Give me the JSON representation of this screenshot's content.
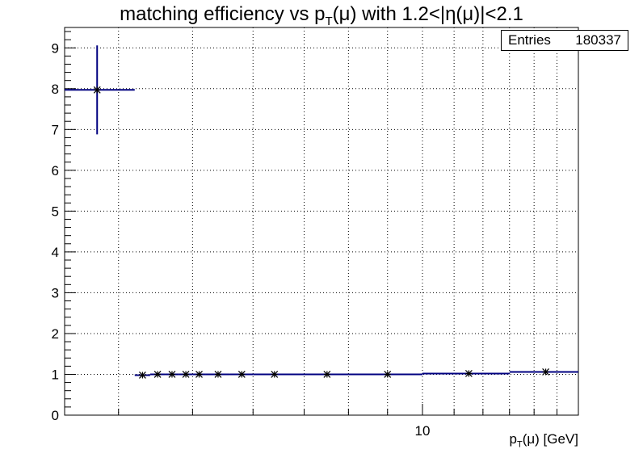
{
  "chart_data": {
    "type": "scatter",
    "title_parts": {
      "pre": "matching efficiency vs p",
      "sub": "T",
      "post": "(μ) with 1.2<|η(μ)|<2.1"
    },
    "stats": {
      "label": "Entries",
      "value": "180337"
    },
    "xlabel_parts": {
      "pre": "p",
      "sub": "T",
      "post": "(μ) [GeV]"
    },
    "ylabel": "",
    "x_scale": "log",
    "xlim": [
      3.4,
      16
    ],
    "ylim": [
      0,
      9.5
    ],
    "yticks": [
      0,
      1,
      2,
      3,
      4,
      5,
      6,
      7,
      8,
      9
    ],
    "xtick_labels": [
      {
        "value": 10,
        "label": "10"
      }
    ],
    "grid": true,
    "points": [
      {
        "x": 3.75,
        "y": 7.97,
        "xlo": 3.4,
        "xhi": 4.2,
        "ylo": 6.88,
        "yhi": 9.06
      },
      {
        "x": 4.3,
        "y": 0.98,
        "xlo": 4.2,
        "xhi": 4.4,
        "ylo": 0.98,
        "yhi": 0.98
      },
      {
        "x": 4.5,
        "y": 1.0,
        "xlo": 4.4,
        "xhi": 4.6,
        "ylo": 1.0,
        "yhi": 1.0
      },
      {
        "x": 4.7,
        "y": 1.0,
        "xlo": 4.6,
        "xhi": 4.8,
        "ylo": 1.0,
        "yhi": 1.0
      },
      {
        "x": 4.9,
        "y": 1.0,
        "xlo": 4.8,
        "xhi": 5.0,
        "ylo": 1.0,
        "yhi": 1.0
      },
      {
        "x": 5.1,
        "y": 1.0,
        "xlo": 5.0,
        "xhi": 5.2,
        "ylo": 1.0,
        "yhi": 1.0
      },
      {
        "x": 5.4,
        "y": 1.0,
        "xlo": 5.2,
        "xhi": 5.6,
        "ylo": 1.0,
        "yhi": 1.0
      },
      {
        "x": 5.8,
        "y": 1.0,
        "xlo": 5.6,
        "xhi": 6.0,
        "ylo": 1.0,
        "yhi": 1.0
      },
      {
        "x": 6.4,
        "y": 1.0,
        "xlo": 6.0,
        "xhi": 7.0,
        "ylo": 1.0,
        "yhi": 1.0
      },
      {
        "x": 7.5,
        "y": 1.0,
        "xlo": 7.0,
        "xhi": 8.0,
        "ylo": 1.0,
        "yhi": 1.0
      },
      {
        "x": 9.0,
        "y": 1.0,
        "xlo": 8.0,
        "xhi": 10.0,
        "ylo": 1.0,
        "yhi": 1.0
      },
      {
        "x": 11.5,
        "y": 1.02,
        "xlo": 10.0,
        "xhi": 13.0,
        "ylo": 1.02,
        "yhi": 1.02
      },
      {
        "x": 14.5,
        "y": 1.06,
        "xlo": 13.0,
        "xhi": 16.0,
        "ylo": 1.06,
        "yhi": 1.06
      }
    ],
    "marker_color": "#000000",
    "line_color": "#000080"
  }
}
